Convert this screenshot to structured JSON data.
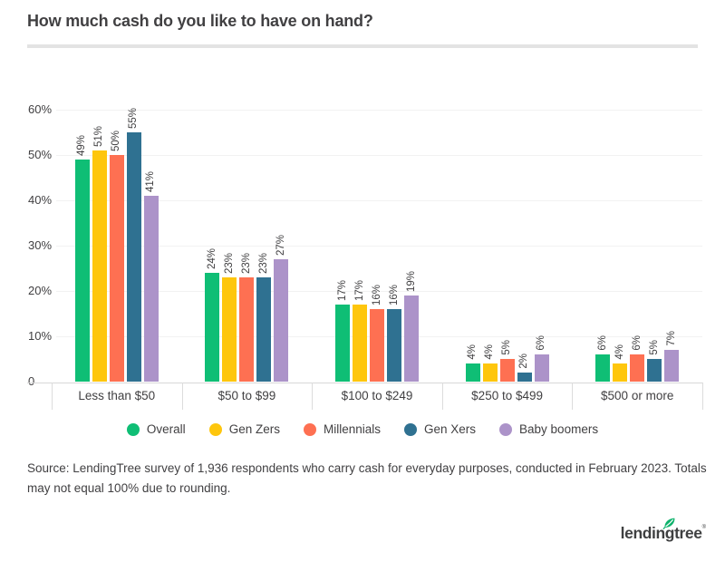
{
  "title": "How much cash do you like to have on hand?",
  "source_note": "Source: LendingTree survey of 1,936 respondents who carry cash for everyday purposes, conducted in February 2023. Totals may not equal 100% due to rounding.",
  "logo": {
    "text": "lendingtree",
    "trademark": "®",
    "leaf_color": "#0db26b"
  },
  "colors": {
    "text": "#414042",
    "title_rule": "#e3e3e3",
    "gridline": "#f2f2f2",
    "axis_line": "#d8d8d8",
    "category_divider": "#dcdcdc"
  },
  "chart_data": {
    "type": "bar",
    "title": "How much cash do you like to have on hand?",
    "categories": [
      "Less than $50",
      "$50 to $99",
      "$100 to $249",
      "$250 to $499",
      "$500 or more"
    ],
    "series": [
      {
        "name": "Overall",
        "color": "#0fbe75",
        "values": [
          49,
          24,
          17,
          4,
          6
        ]
      },
      {
        "name": "Gen Zers",
        "color": "#fec60d",
        "values": [
          51,
          23,
          17,
          4,
          4
        ]
      },
      {
        "name": "Millennials",
        "color": "#fe7052",
        "values": [
          50,
          23,
          16,
          5,
          6
        ]
      },
      {
        "name": "Gen Xers",
        "color": "#2f7191",
        "values": [
          55,
          23,
          16,
          2,
          5
        ]
      },
      {
        "name": "Baby boomers",
        "color": "#ac93c9",
        "values": [
          41,
          27,
          19,
          6,
          7
        ]
      }
    ],
    "value_suffix": "%",
    "y_ticks": [
      "0",
      "10%",
      "20%",
      "30%",
      "40%",
      "50%",
      "60%"
    ],
    "ylim": [
      0,
      60
    ],
    "grid": true,
    "legend_position": "bottom",
    "bar_label_rotation": -90
  }
}
